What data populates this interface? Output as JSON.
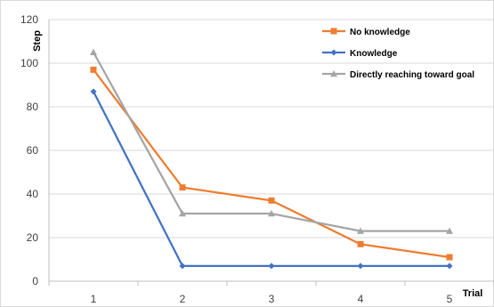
{
  "chart_data": {
    "type": "line",
    "title": "",
    "xlabel": "Trial",
    "ylabel": "Step",
    "x": [
      1,
      2,
      3,
      4,
      5
    ],
    "ylim": [
      0,
      120
    ],
    "yticks": [
      0,
      20,
      40,
      60,
      80,
      100,
      120
    ],
    "grid": "horizontal",
    "legend_position": "top-right",
    "series": [
      {
        "name": "No knowledge",
        "values": [
          97,
          43,
          37,
          17,
          11
        ],
        "color": "#ED7D31",
        "marker": "square"
      },
      {
        "name": "Knowledge",
        "values": [
          87,
          7,
          7,
          7,
          7
        ],
        "color": "#4472C4",
        "marker": "diamond"
      },
      {
        "name": "Directly reaching toward goal",
        "values": [
          105,
          31,
          31,
          23,
          23
        ],
        "color": "#A5A5A5",
        "marker": "triangle"
      }
    ]
  }
}
